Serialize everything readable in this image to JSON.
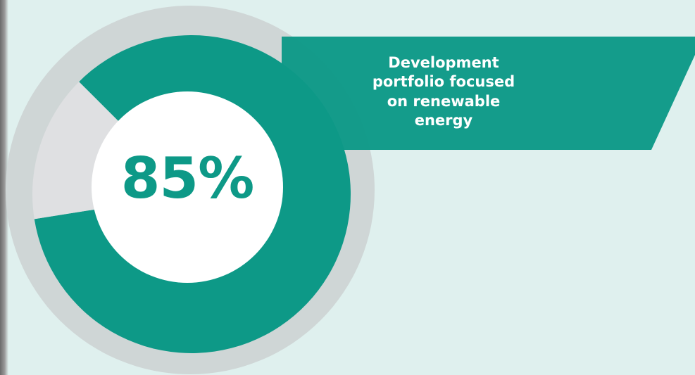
{
  "chart_data": {
    "type": "pie",
    "style": "donut",
    "center_label": "85%",
    "values": [
      85,
      15
    ],
    "slices": [
      {
        "value": 85,
        "color": "#0d9987"
      },
      {
        "value": 15,
        "color": "#dfe0e2"
      }
    ],
    "start_angle_deg": 225,
    "direction": "clockwise"
  },
  "banner": {
    "text": "Development portfolio focused on renewable energy",
    "color": "#0d9987"
  },
  "colors": {
    "background": "#dff0ee",
    "accent": "#0d9987",
    "remainder": "#dfe0e2",
    "outer_ring": "#cfd6d6",
    "center": "#ffffff"
  }
}
